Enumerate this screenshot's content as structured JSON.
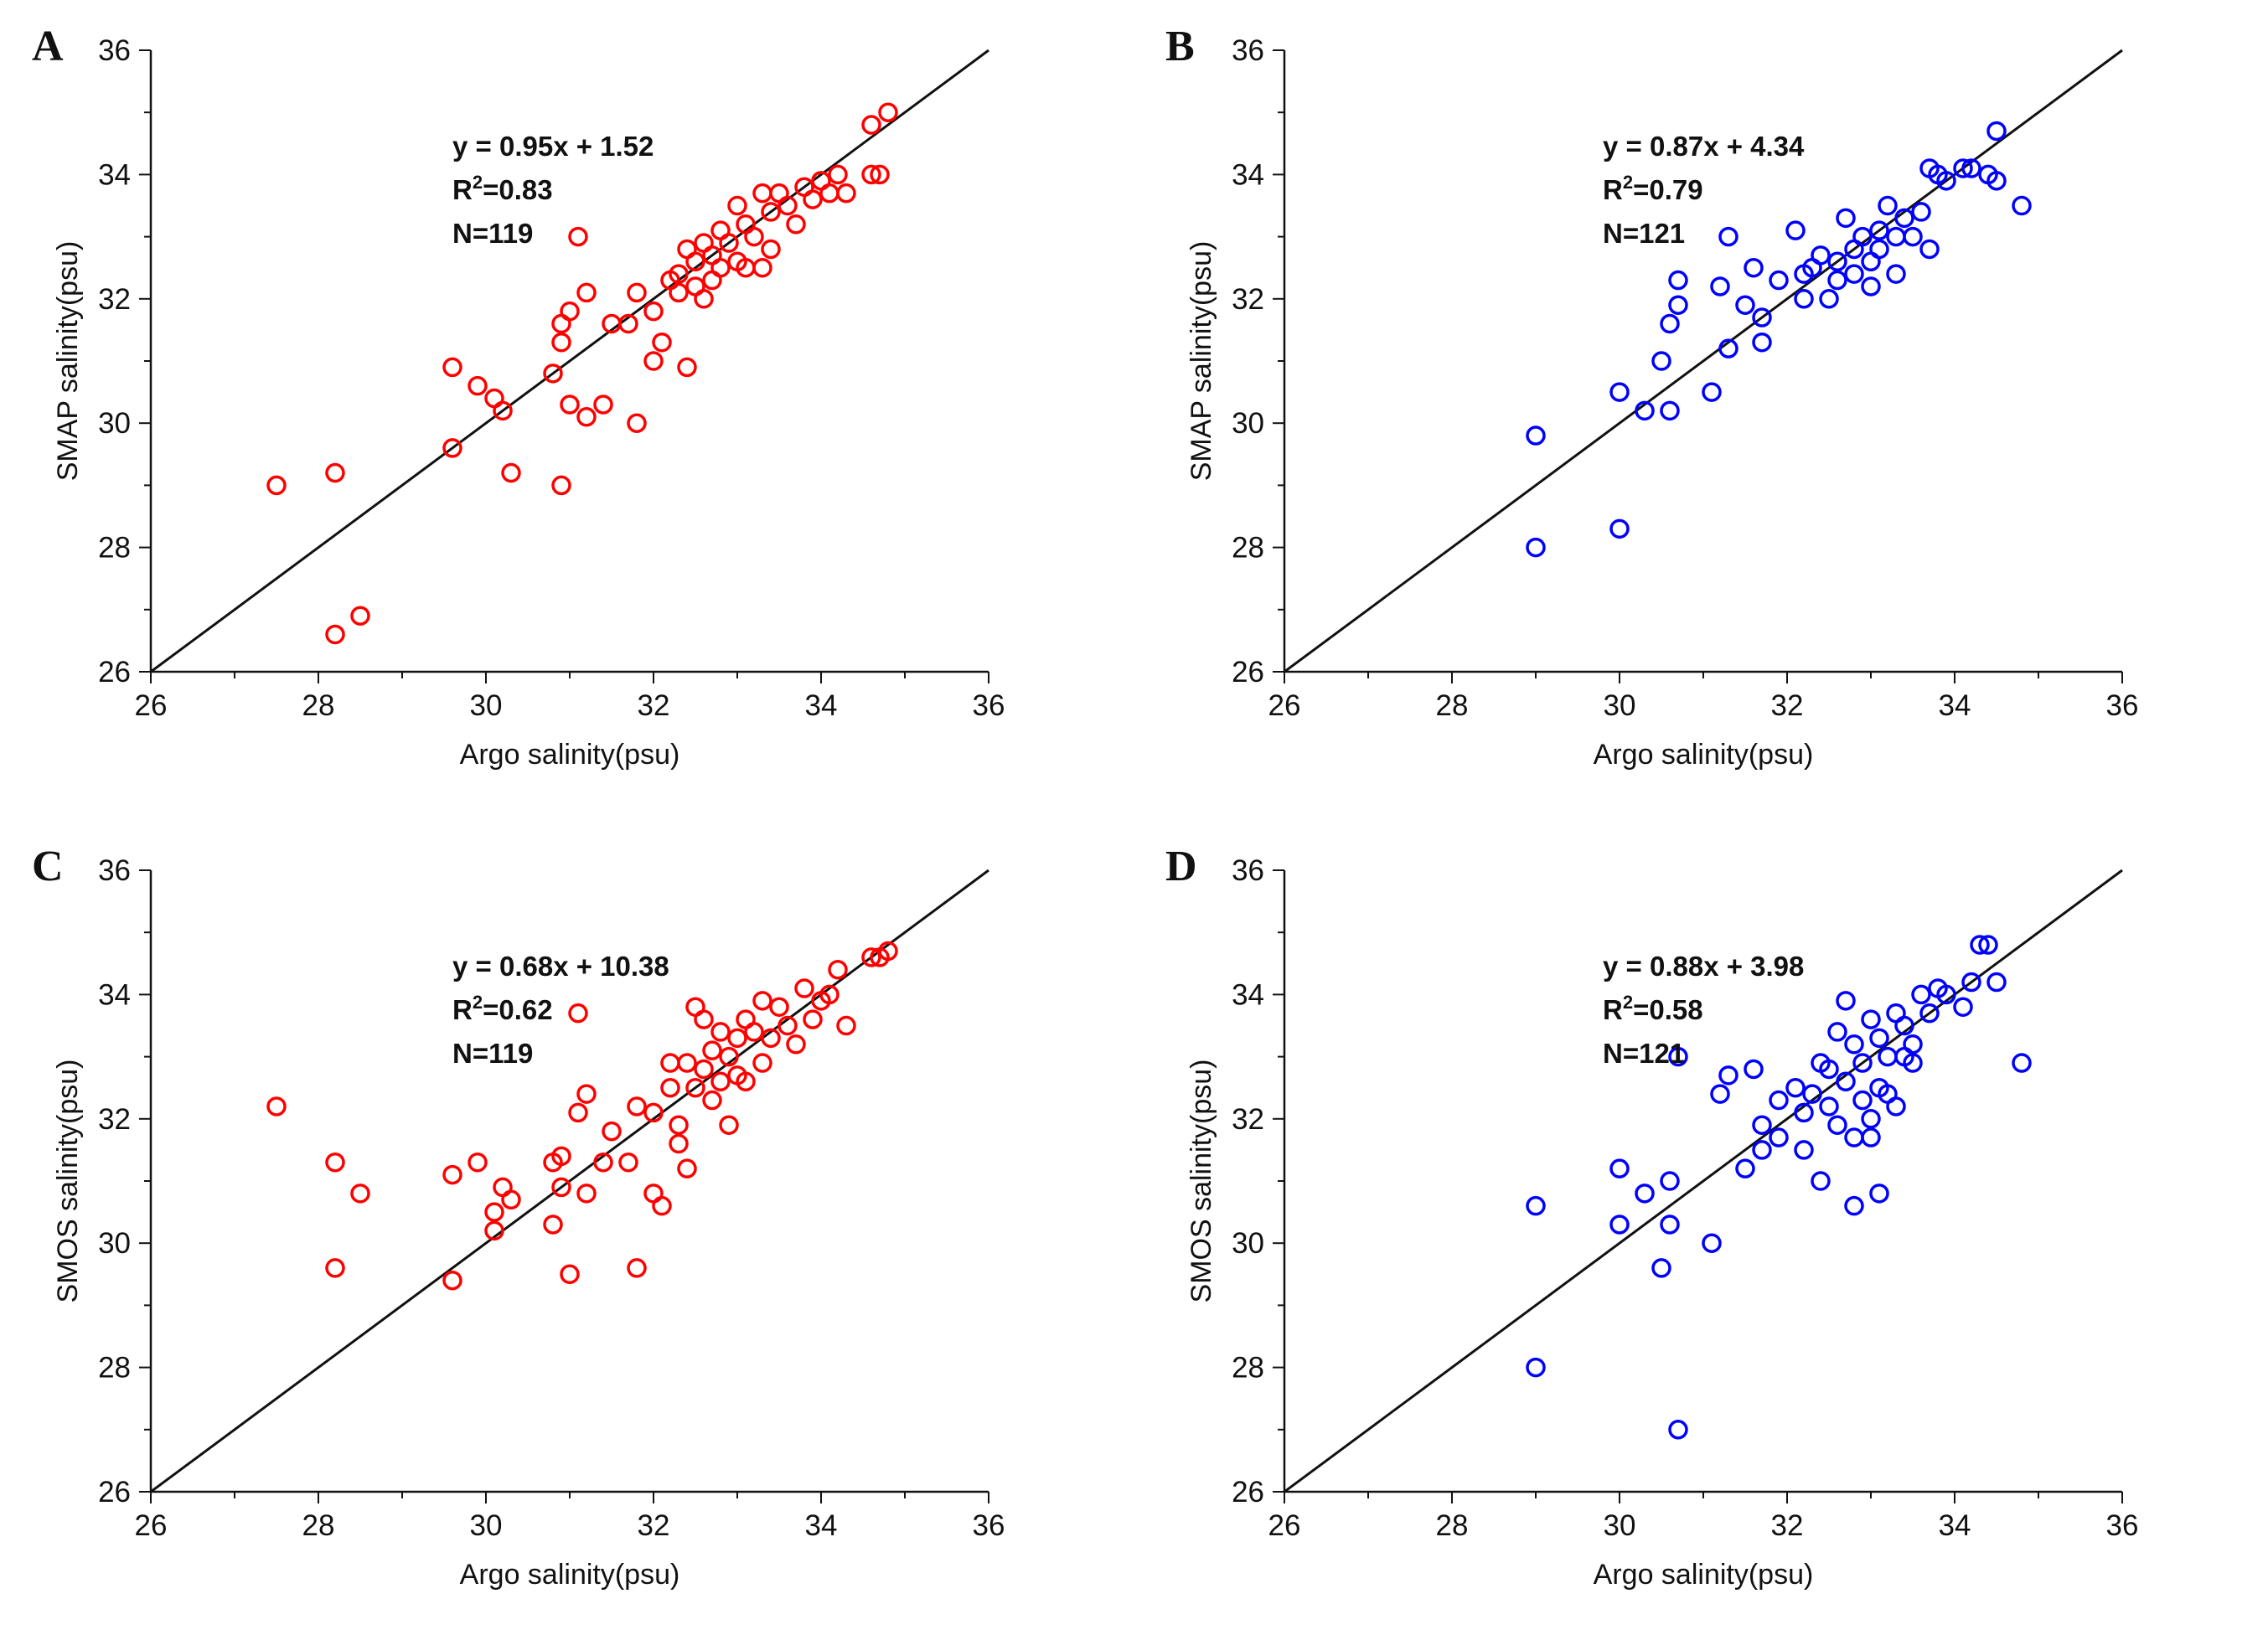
{
  "chart_data": [
    {
      "panel": "A",
      "type": "scatter",
      "xlabel": "Argo salinity(psu)",
      "ylabel": "SMAP salinity(psu)",
      "xlim": [
        26,
        36
      ],
      "ylim": [
        26,
        36
      ],
      "xticks": [
        "26",
        "28",
        "30",
        "32",
        "34",
        "36"
      ],
      "yticks": [
        "26",
        "28",
        "30",
        "32",
        "34",
        "36"
      ],
      "annotations": [
        "y = 0.95x + 1.52",
        "R²=0.83",
        "N=119"
      ],
      "fit": {
        "slope": 1.0,
        "intercept": 0.0
      },
      "marker_color": "#ff0000",
      "points": [
        [
          27.5,
          29.0
        ],
        [
          28.2,
          29.2
        ],
        [
          28.2,
          26.6
        ],
        [
          28.5,
          26.9
        ],
        [
          29.6,
          30.9
        ],
        [
          29.6,
          29.6
        ],
        [
          29.9,
          30.6
        ],
        [
          30.1,
          30.4
        ],
        [
          30.2,
          30.2
        ],
        [
          30.3,
          29.2
        ],
        [
          30.8,
          30.8
        ],
        [
          30.9,
          31.6
        ],
        [
          30.9,
          31.3
        ],
        [
          30.9,
          29.0
        ],
        [
          31.0,
          30.3
        ],
        [
          31.0,
          31.8
        ],
        [
          31.1,
          33.0
        ],
        [
          31.2,
          32.1
        ],
        [
          31.2,
          30.1
        ],
        [
          31.4,
          30.3
        ],
        [
          31.5,
          31.6
        ],
        [
          31.7,
          31.6
        ],
        [
          31.8,
          32.1
        ],
        [
          31.8,
          30.0
        ],
        [
          32.0,
          31.8
        ],
        [
          32.0,
          31.0
        ],
        [
          32.1,
          31.3
        ],
        [
          32.2,
          32.3
        ],
        [
          32.3,
          32.4
        ],
        [
          32.3,
          32.1
        ],
        [
          32.4,
          32.8
        ],
        [
          32.4,
          30.9
        ],
        [
          32.5,
          32.6
        ],
        [
          32.5,
          32.2
        ],
        [
          32.6,
          32.9
        ],
        [
          32.6,
          32.0
        ],
        [
          32.7,
          32.7
        ],
        [
          32.7,
          32.3
        ],
        [
          32.8,
          33.1
        ],
        [
          32.8,
          32.5
        ],
        [
          32.9,
          32.9
        ],
        [
          33.0,
          33.5
        ],
        [
          33.0,
          32.6
        ],
        [
          33.1,
          33.2
        ],
        [
          33.1,
          32.5
        ],
        [
          33.2,
          33.0
        ],
        [
          33.3,
          33.7
        ],
        [
          33.3,
          32.5
        ],
        [
          33.4,
          33.4
        ],
        [
          33.4,
          32.8
        ],
        [
          33.5,
          33.7
        ],
        [
          33.6,
          33.5
        ],
        [
          33.7,
          33.2
        ],
        [
          33.8,
          33.8
        ],
        [
          33.9,
          33.6
        ],
        [
          34.0,
          33.9
        ],
        [
          34.1,
          33.7
        ],
        [
          34.2,
          34.0
        ],
        [
          34.3,
          33.7
        ],
        [
          34.6,
          34.0
        ],
        [
          34.6,
          34.8
        ],
        [
          34.7,
          34.0
        ],
        [
          34.8,
          35.0
        ]
      ]
    },
    {
      "panel": "B",
      "type": "scatter",
      "xlabel": "Argo salinity(psu)",
      "ylabel": "SMAP salinity(psu)",
      "xlim": [
        26,
        36
      ],
      "ylim": [
        26,
        36
      ],
      "xticks": [
        "26",
        "28",
        "30",
        "32",
        "34",
        "36"
      ],
      "yticks": [
        "26",
        "28",
        "30",
        "32",
        "34",
        "36"
      ],
      "annotations": [
        "y = 0.87x + 4.34",
        "R²=0.79",
        "N=121"
      ],
      "fit": {
        "slope": 1.0,
        "intercept": 0.0
      },
      "marker_color": "#0000ff",
      "points": [
        [
          29.0,
          29.8
        ],
        [
          29.0,
          28.0
        ],
        [
          30.0,
          30.5
        ],
        [
          30.0,
          28.3
        ],
        [
          30.3,
          30.2
        ],
        [
          30.5,
          31.0
        ],
        [
          30.6,
          31.6
        ],
        [
          30.6,
          30.2
        ],
        [
          30.7,
          31.9
        ],
        [
          30.7,
          32.3
        ],
        [
          31.1,
          30.5
        ],
        [
          31.2,
          32.2
        ],
        [
          31.3,
          33.0
        ],
        [
          31.3,
          31.2
        ],
        [
          31.5,
          31.9
        ],
        [
          31.6,
          32.5
        ],
        [
          31.7,
          31.7
        ],
        [
          31.7,
          31.3
        ],
        [
          31.9,
          32.3
        ],
        [
          32.1,
          33.1
        ],
        [
          32.2,
          32.4
        ],
        [
          32.2,
          32.0
        ],
        [
          32.3,
          32.5
        ],
        [
          32.4,
          32.7
        ],
        [
          32.5,
          32.0
        ],
        [
          32.6,
          32.6
        ],
        [
          32.6,
          32.3
        ],
        [
          32.7,
          33.3
        ],
        [
          32.8,
          32.8
        ],
        [
          32.8,
          32.4
        ],
        [
          32.9,
          33.0
        ],
        [
          33.0,
          32.6
        ],
        [
          33.0,
          32.2
        ],
        [
          33.1,
          33.1
        ],
        [
          33.1,
          32.8
        ],
        [
          33.2,
          33.5
        ],
        [
          33.3,
          32.4
        ],
        [
          33.3,
          33.0
        ],
        [
          33.4,
          33.3
        ],
        [
          33.5,
          33.0
        ],
        [
          33.6,
          33.4
        ],
        [
          33.7,
          34.1
        ],
        [
          33.7,
          32.8
        ],
        [
          33.8,
          34.0
        ],
        [
          33.9,
          33.9
        ],
        [
          34.1,
          34.1
        ],
        [
          34.2,
          34.1
        ],
        [
          34.4,
          34.0
        ],
        [
          34.5,
          34.7
        ],
        [
          34.5,
          33.9
        ],
        [
          34.8,
          33.5
        ]
      ]
    },
    {
      "panel": "C",
      "type": "scatter",
      "xlabel": "Argo salinity(psu)",
      "ylabel": "SMOS salinity(psu)",
      "xlim": [
        26,
        36
      ],
      "ylim": [
        26,
        36
      ],
      "xticks": [
        "26",
        "28",
        "30",
        "32",
        "34",
        "36"
      ],
      "yticks": [
        "26",
        "28",
        "30",
        "32",
        "34",
        "36"
      ],
      "annotations": [
        "y = 0.68x + 10.38",
        "R²=0.62",
        "N=119"
      ],
      "fit": {
        "slope": 1.0,
        "intercept": 0.0
      },
      "marker_color": "#ff0000",
      "points": [
        [
          27.5,
          32.2
        ],
        [
          28.2,
          31.3
        ],
        [
          28.2,
          29.6
        ],
        [
          28.5,
          30.8
        ],
        [
          29.6,
          31.1
        ],
        [
          29.6,
          29.4
        ],
        [
          29.9,
          31.3
        ],
        [
          30.1,
          30.2
        ],
        [
          30.1,
          30.5
        ],
        [
          30.2,
          30.9
        ],
        [
          30.3,
          30.7
        ],
        [
          30.8,
          31.3
        ],
        [
          30.8,
          30.3
        ],
        [
          30.9,
          31.4
        ],
        [
          30.9,
          30.9
        ],
        [
          31.0,
          29.5
        ],
        [
          31.1,
          32.1
        ],
        [
          31.1,
          33.7
        ],
        [
          31.2,
          32.4
        ],
        [
          31.2,
          30.8
        ],
        [
          31.4,
          31.3
        ],
        [
          31.5,
          31.8
        ],
        [
          31.7,
          31.3
        ],
        [
          31.8,
          32.2
        ],
        [
          31.8,
          29.6
        ],
        [
          32.0,
          32.1
        ],
        [
          32.0,
          30.8
        ],
        [
          32.1,
          30.6
        ],
        [
          32.2,
          32.5
        ],
        [
          32.2,
          32.9
        ],
        [
          32.3,
          31.9
        ],
        [
          32.3,
          31.6
        ],
        [
          32.4,
          32.9
        ],
        [
          32.4,
          31.2
        ],
        [
          32.5,
          32.5
        ],
        [
          32.5,
          33.8
        ],
        [
          32.6,
          32.8
        ],
        [
          32.6,
          33.6
        ],
        [
          32.7,
          32.3
        ],
        [
          32.7,
          33.1
        ],
        [
          32.8,
          33.4
        ],
        [
          32.8,
          32.6
        ],
        [
          32.9,
          33.0
        ],
        [
          32.9,
          31.9
        ],
        [
          33.0,
          33.3
        ],
        [
          33.0,
          32.7
        ],
        [
          33.1,
          33.6
        ],
        [
          33.1,
          32.6
        ],
        [
          33.2,
          33.4
        ],
        [
          33.3,
          33.9
        ],
        [
          33.3,
          32.9
        ],
        [
          33.4,
          33.3
        ],
        [
          33.5,
          33.8
        ],
        [
          33.6,
          33.5
        ],
        [
          33.7,
          33.2
        ],
        [
          33.8,
          34.1
        ],
        [
          33.9,
          33.6
        ],
        [
          34.0,
          33.9
        ],
        [
          34.1,
          34.0
        ],
        [
          34.2,
          34.4
        ],
        [
          34.3,
          33.5
        ],
        [
          34.6,
          34.6
        ],
        [
          34.7,
          34.6
        ],
        [
          34.8,
          34.7
        ]
      ]
    },
    {
      "panel": "D",
      "type": "scatter",
      "xlabel": "Argo salinity(psu)",
      "ylabel": "SMOS salinity(psu)",
      "xlim": [
        26,
        36
      ],
      "ylim": [
        26,
        36
      ],
      "xticks": [
        "26",
        "28",
        "30",
        "32",
        "34",
        "36"
      ],
      "yticks": [
        "26",
        "28",
        "30",
        "32",
        "34",
        "36"
      ],
      "annotations": [
        "y = 0.88x + 3.98",
        "R²=0.58",
        "N=121"
      ],
      "fit": {
        "slope": 1.0,
        "intercept": 0.0
      },
      "marker_color": "#0000ff",
      "points": [
        [
          29.0,
          30.6
        ],
        [
          29.0,
          28.0
        ],
        [
          30.0,
          31.2
        ],
        [
          30.0,
          30.3
        ],
        [
          30.3,
          30.8
        ],
        [
          30.5,
          29.6
        ],
        [
          30.6,
          31.0
        ],
        [
          30.6,
          30.3
        ],
        [
          30.7,
          33.0
        ],
        [
          30.7,
          27.0
        ],
        [
          31.1,
          30.0
        ],
        [
          31.2,
          32.4
        ],
        [
          31.3,
          32.7
        ],
        [
          31.5,
          31.2
        ],
        [
          31.6,
          32.8
        ],
        [
          31.7,
          31.9
        ],
        [
          31.7,
          31.5
        ],
        [
          31.9,
          32.3
        ],
        [
          31.9,
          31.7
        ],
        [
          32.1,
          32.5
        ],
        [
          32.2,
          32.1
        ],
        [
          32.2,
          31.5
        ],
        [
          32.3,
          32.4
        ],
        [
          32.4,
          31.0
        ],
        [
          32.4,
          32.9
        ],
        [
          32.5,
          32.2
        ],
        [
          32.5,
          32.8
        ],
        [
          32.6,
          31.9
        ],
        [
          32.6,
          33.4
        ],
        [
          32.7,
          33.9
        ],
        [
          32.7,
          32.6
        ],
        [
          32.8,
          33.2
        ],
        [
          32.8,
          31.7
        ],
        [
          32.8,
          30.6
        ],
        [
          32.9,
          32.9
        ],
        [
          32.9,
          32.3
        ],
        [
          33.0,
          33.6
        ],
        [
          33.0,
          31.7
        ],
        [
          33.0,
          32.0
        ],
        [
          33.1,
          33.3
        ],
        [
          33.1,
          32.5
        ],
        [
          33.1,
          30.8
        ],
        [
          33.2,
          33.0
        ],
        [
          33.2,
          32.4
        ],
        [
          33.3,
          33.7
        ],
        [
          33.3,
          32.2
        ],
        [
          33.4,
          33.0
        ],
        [
          33.4,
          33.5
        ],
        [
          33.5,
          33.2
        ],
        [
          33.5,
          32.9
        ],
        [
          33.6,
          34.0
        ],
        [
          33.7,
          33.7
        ],
        [
          33.8,
          34.1
        ],
        [
          33.9,
          34.0
        ],
        [
          34.1,
          33.8
        ],
        [
          34.2,
          34.2
        ],
        [
          34.3,
          34.8
        ],
        [
          34.4,
          34.8
        ],
        [
          34.5,
          34.2
        ],
        [
          34.8,
          32.9
        ]
      ]
    }
  ]
}
